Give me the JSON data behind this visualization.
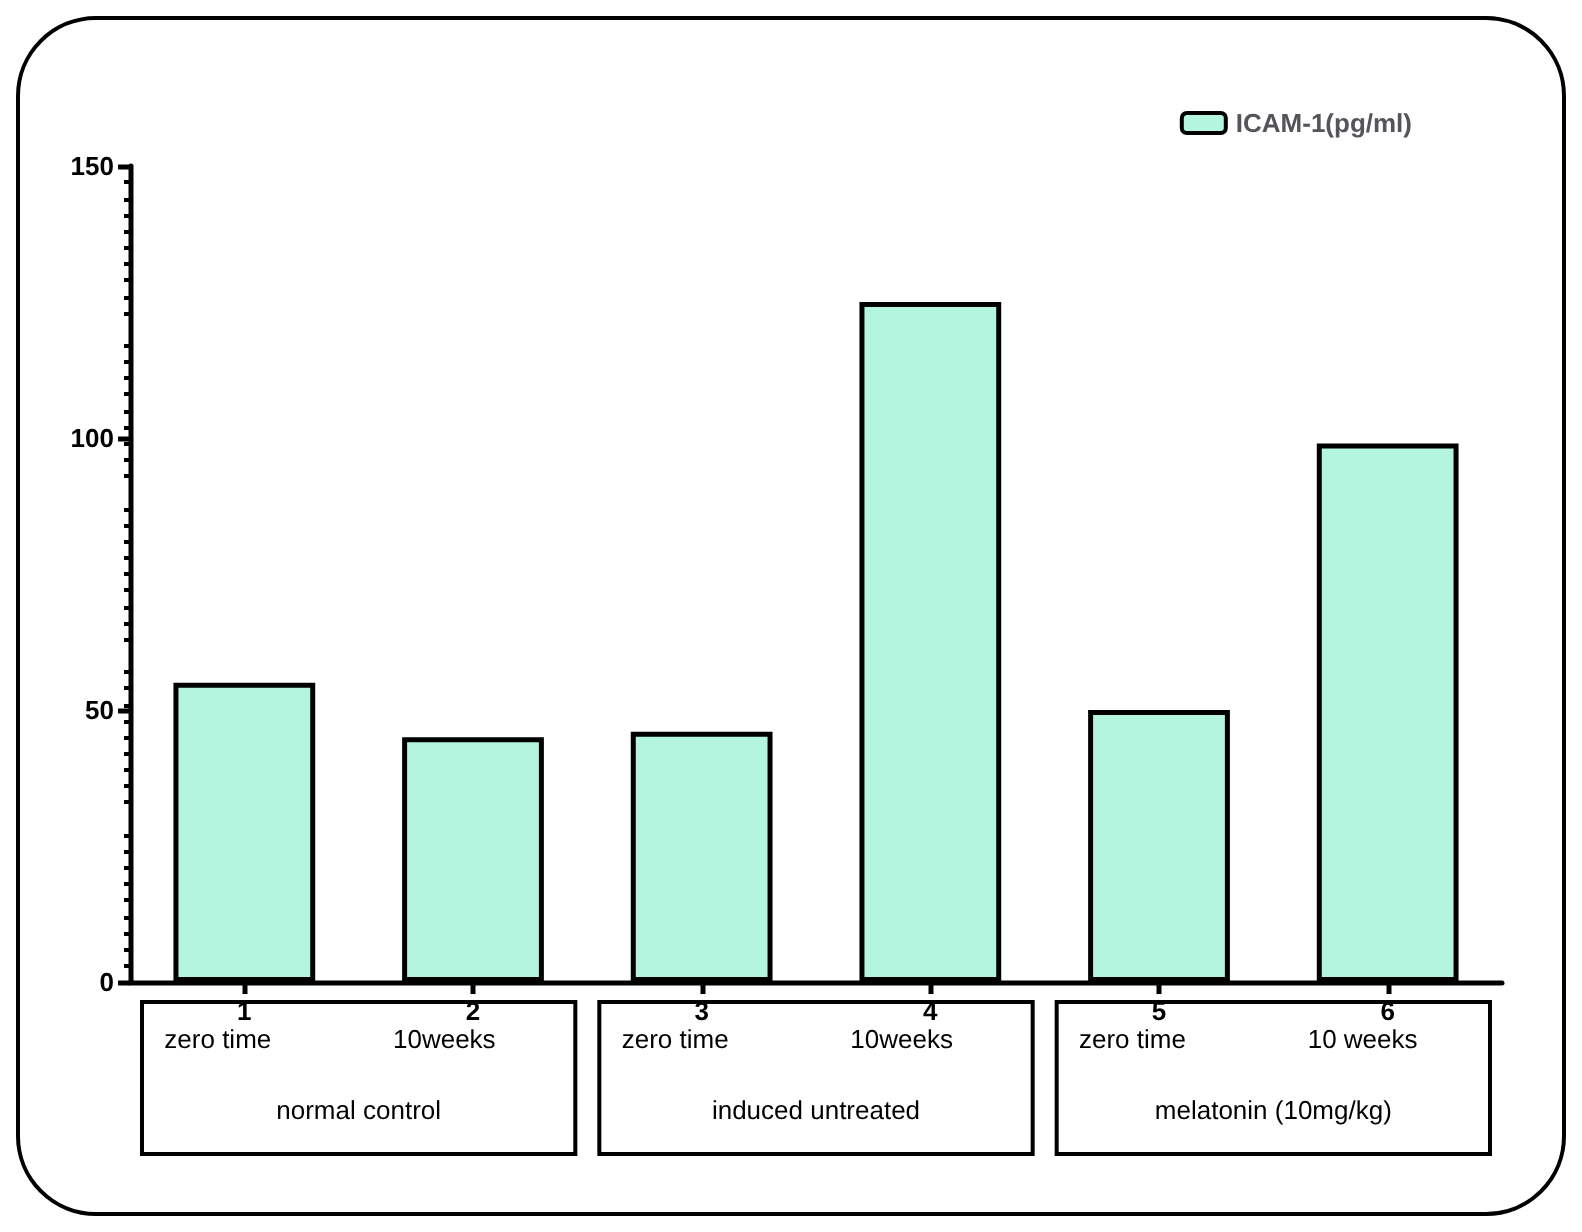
{
  "chart_data": {
    "type": "bar",
    "categories": [
      "1",
      "2",
      "3",
      "4",
      "5",
      "6"
    ],
    "series": [
      {
        "name": "ICAM-1(pg/ml)",
        "color": "#b3f5de",
        "values": [
          55,
          45,
          46,
          125,
          50,
          99
        ]
      }
    ],
    "ylim": [
      0,
      150
    ],
    "yticks": [
      0,
      50,
      100,
      150
    ],
    "grid": false,
    "legend": "top right",
    "annotations": [
      "zero time",
      "10weeks",
      "zero time",
      "10weeks",
      "zero time",
      "10 weeks",
      "normal control",
      "induced untreated",
      "melatonin (10mg/kg)"
    ]
  }
}
